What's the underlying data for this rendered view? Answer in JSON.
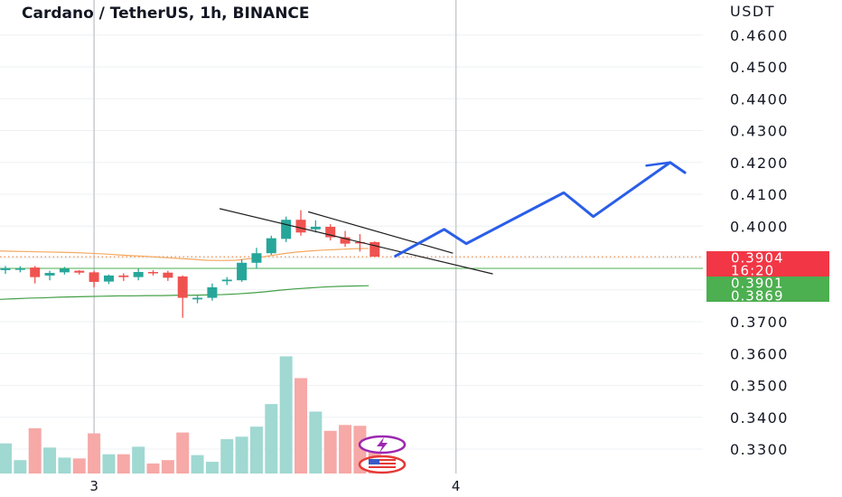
{
  "chart_data": {
    "type": "candlestick",
    "title": "Cardano / TetherUS, 1h, BINANCE",
    "y_unit": "USDT",
    "ylim": [
      0.323,
      0.4665
    ],
    "y_ticks": [
      "0.4600",
      "0.4500",
      "0.4400",
      "0.4300",
      "0.4200",
      "0.4100",
      "0.4000",
      "0.3700",
      "0.3600",
      "0.3500",
      "0.3400",
      "0.3300"
    ],
    "y_tick_values": [
      0.46,
      0.45,
      0.44,
      0.43,
      0.42,
      0.41,
      0.4,
      0.37,
      0.36,
      0.35,
      0.34,
      0.33
    ],
    "x_ticks": [
      {
        "label": "3",
        "index": 6
      },
      {
        "label": "4",
        "index": 30.5
      }
    ],
    "bar_count_visible": 26,
    "colors": {
      "up": "#26a69a",
      "down": "#ef5350",
      "up_volume": "#a0d8d2",
      "down_volume": "#f6a9a7",
      "projection": "#2a5ee8"
    },
    "candles": [
      {
        "o": 0.3862,
        "h": 0.3875,
        "l": 0.385,
        "c": 0.3868
      },
      {
        "o": 0.3866,
        "h": 0.3874,
        "l": 0.3855,
        "c": 0.3867
      },
      {
        "o": 0.387,
        "h": 0.3875,
        "l": 0.382,
        "c": 0.384
      },
      {
        "o": 0.3845,
        "h": 0.386,
        "l": 0.383,
        "c": 0.3853
      },
      {
        "o": 0.3855,
        "h": 0.3872,
        "l": 0.3848,
        "c": 0.3866
      },
      {
        "o": 0.386,
        "h": 0.3862,
        "l": 0.3848,
        "c": 0.3854
      },
      {
        "o": 0.3855,
        "h": 0.386,
        "l": 0.3808,
        "c": 0.3825
      },
      {
        "o": 0.3826,
        "h": 0.3848,
        "l": 0.3818,
        "c": 0.3845
      },
      {
        "o": 0.3845,
        "h": 0.3852,
        "l": 0.3828,
        "c": 0.384
      },
      {
        "o": 0.384,
        "h": 0.3866,
        "l": 0.383,
        "c": 0.3856
      },
      {
        "o": 0.3856,
        "h": 0.3862,
        "l": 0.3845,
        "c": 0.3852
      },
      {
        "o": 0.3854,
        "h": 0.386,
        "l": 0.3828,
        "c": 0.3838
      },
      {
        "o": 0.3842,
        "h": 0.3845,
        "l": 0.3712,
        "c": 0.3775
      },
      {
        "o": 0.377,
        "h": 0.3782,
        "l": 0.3758,
        "c": 0.3775
      },
      {
        "o": 0.3775,
        "h": 0.382,
        "l": 0.3766,
        "c": 0.3808
      },
      {
        "o": 0.3827,
        "h": 0.384,
        "l": 0.3815,
        "c": 0.3832
      },
      {
        "o": 0.383,
        "h": 0.3896,
        "l": 0.3825,
        "c": 0.3885
      },
      {
        "o": 0.3885,
        "h": 0.3932,
        "l": 0.3866,
        "c": 0.3915
      },
      {
        "o": 0.3915,
        "h": 0.397,
        "l": 0.391,
        "c": 0.3962
      },
      {
        "o": 0.396,
        "h": 0.403,
        "l": 0.395,
        "c": 0.402
      },
      {
        "o": 0.402,
        "h": 0.405,
        "l": 0.397,
        "c": 0.398
      },
      {
        "o": 0.399,
        "h": 0.4018,
        "l": 0.398,
        "c": 0.3998
      },
      {
        "o": 0.3998,
        "h": 0.4006,
        "l": 0.3955,
        "c": 0.3965
      },
      {
        "o": 0.3965,
        "h": 0.3985,
        "l": 0.3935,
        "c": 0.3945
      },
      {
        "o": 0.395,
        "h": 0.3975,
        "l": 0.392,
        "c": 0.3948
      },
      {
        "o": 0.395,
        "h": 0.3952,
        "l": 0.391,
        "c": 0.3904
      }
    ],
    "volume": [
      36,
      16,
      54,
      31,
      19,
      18,
      48,
      23,
      23,
      32,
      12,
      16,
      49,
      22,
      14,
      41,
      44,
      56,
      83,
      140,
      114,
      74,
      51,
      58,
      57,
      43
    ],
    "moving_average_orange": [
      0.3922,
      0.3921,
      0.392,
      0.3919,
      0.3918,
      0.3917,
      0.3915,
      0.3913,
      0.391,
      0.3907,
      0.3905,
      0.3902,
      0.3899,
      0.3896,
      0.3893,
      0.3892,
      0.3893,
      0.3898,
      0.3905,
      0.3912,
      0.3918,
      0.3922,
      0.3925,
      0.3927,
      0.3929,
      0.393
    ],
    "moving_average_green": [
      0.377,
      0.3772,
      0.3774,
      0.3775,
      0.3777,
      0.3778,
      0.3779,
      0.378,
      0.3781,
      0.3781,
      0.3782,
      0.3782,
      0.3783,
      0.3783,
      0.3784,
      0.3785,
      0.3787,
      0.379,
      0.3794,
      0.3799,
      0.3803,
      0.3806,
      0.3809,
      0.3811,
      0.3812,
      0.3813
    ],
    "channel_lines": [
      {
        "from": {
          "i": 14.5,
          "y": 0.4055
        },
        "to": {
          "i": 33.0,
          "y": 0.385
        }
      },
      {
        "from": {
          "i": 20.5,
          "y": 0.4045
        },
        "to": {
          "i": 30.3,
          "y": 0.3915
        }
      }
    ],
    "projection": [
      {
        "i": 26.4,
        "y": 0.3906
      },
      {
        "i": 29.7,
        "y": 0.399
      },
      {
        "i": 31.2,
        "y": 0.3945
      },
      {
        "i": 37.8,
        "y": 0.4105
      },
      {
        "i": 39.8,
        "y": 0.403
      },
      {
        "i": 45.0,
        "y": 0.42
      },
      {
        "i": 46.0,
        "y": 0.4168
      }
    ],
    "projection_tail": {
      "from": {
        "i": 43.4,
        "y": 0.419
      },
      "to": {
        "i": 45.0,
        "y": 0.42
      }
    },
    "last_price_line": 0.3904,
    "ma_line_level": 0.3869,
    "price_badges": [
      {
        "label": "0.3904",
        "value": 0.3904,
        "color": "#f23645"
      },
      {
        "label": "16:20",
        "value": 0.3904,
        "color": "#f23645",
        "sub": true
      },
      {
        "label": "0.3901",
        "value": 0.3901,
        "color": "#4caf50"
      },
      {
        "label": "0.3869",
        "value": 0.3869,
        "color": "#4caf50"
      }
    ],
    "legend": "none",
    "grid": true
  }
}
